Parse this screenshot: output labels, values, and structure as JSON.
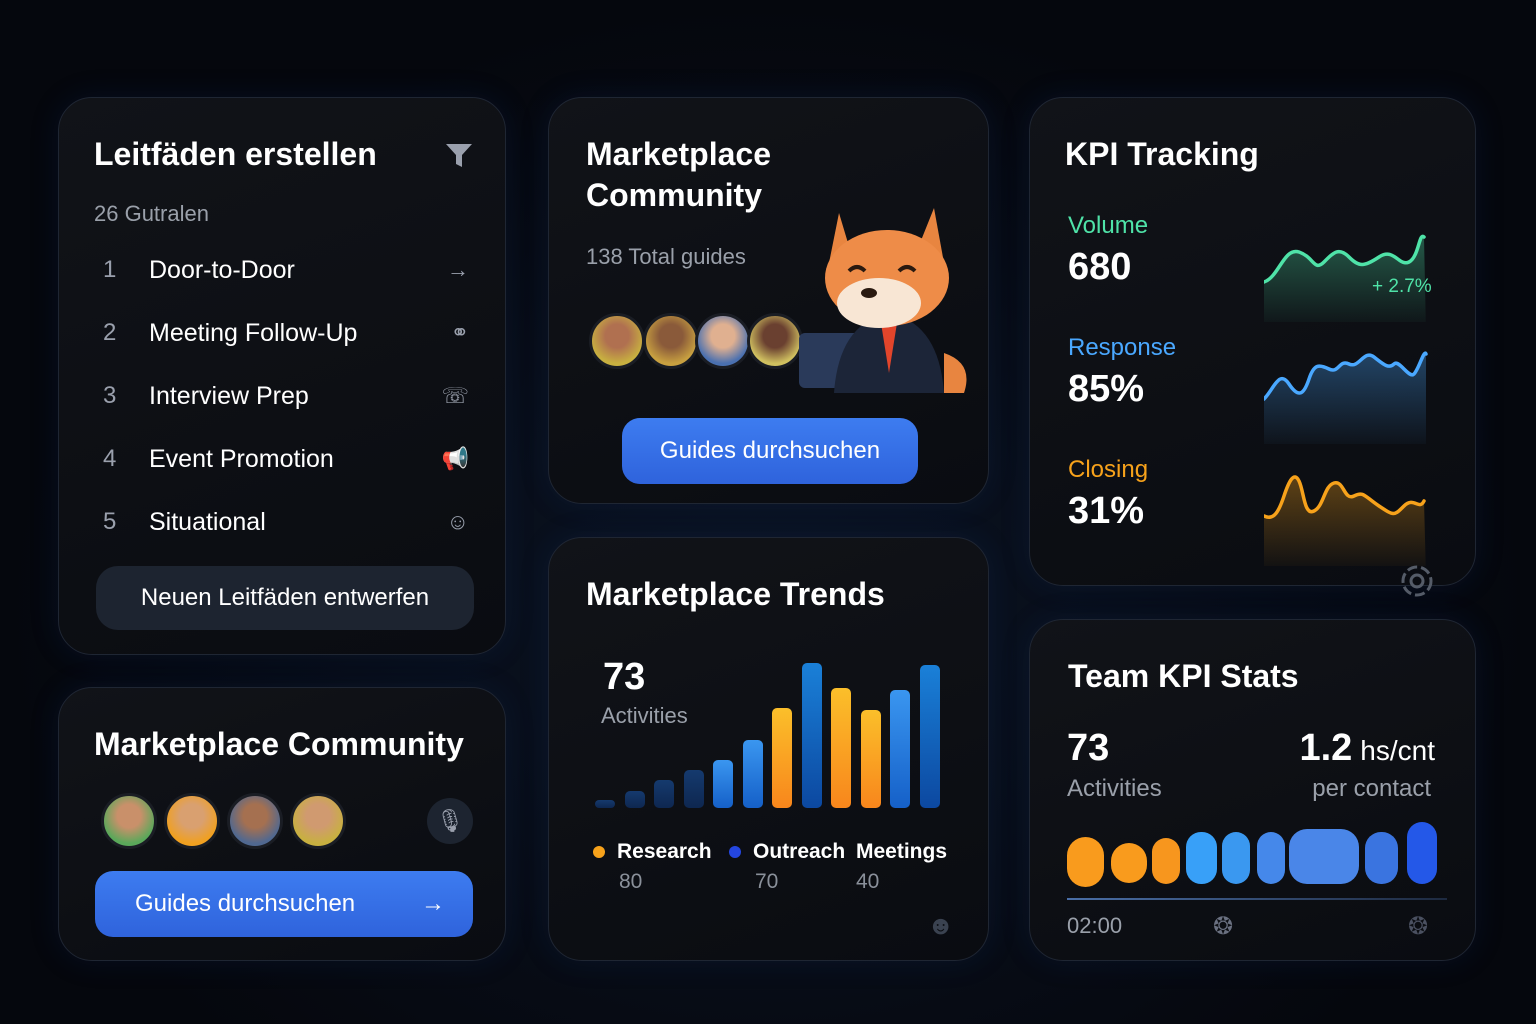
{
  "guides": {
    "title": "Leitfäden erstellen",
    "count": "26 Gutralen",
    "filter_icon": "filter-icon",
    "items": [
      {
        "n": "1",
        "label": "Door-to-Door",
        "icon": "arrow-right-icon",
        "glyph": "→"
      },
      {
        "n": "2",
        "label": "Meeting Follow-Up",
        "icon": "link-icon",
        "glyph": "⚭"
      },
      {
        "n": "3",
        "label": "Interview Prep",
        "icon": "phone-icon",
        "glyph": "☏"
      },
      {
        "n": "4",
        "label": "Event Promotion",
        "icon": "megaphone-icon",
        "glyph": "📢"
      },
      {
        "n": "5",
        "label": "Situational",
        "icon": "face-icon",
        "glyph": "☺"
      }
    ],
    "button": "Neuen Leitfäden entwerfen"
  },
  "community_top": {
    "title_line1": "Marketplace",
    "title_line2": "Community",
    "total": "138 Total guides",
    "button": "Guides durchsuchen"
  },
  "community_bottom": {
    "title": "Marketplace Community",
    "button": "Guides durchsuchen",
    "arrow": "→"
  },
  "trends": {
    "title": "Marketplace Trends",
    "value": "73",
    "value_label": "Activities",
    "bars": [
      {
        "v": 8,
        "c": "dark"
      },
      {
        "v": 17,
        "c": "dark"
      },
      {
        "v": 28,
        "c": "dark"
      },
      {
        "v": 38,
        "c": "dark"
      },
      {
        "v": 48,
        "c": "blue"
      },
      {
        "v": 68,
        "c": "blue"
      },
      {
        "v": 100,
        "c": "orange"
      },
      {
        "v": 145,
        "c": "blue"
      },
      {
        "v": 120,
        "c": "orange"
      },
      {
        "v": 98,
        "c": "orange"
      },
      {
        "v": 118,
        "c": "blue"
      },
      {
        "v": 143,
        "c": "blue"
      }
    ],
    "legend": [
      {
        "name": "Research",
        "value": "80",
        "color": "#f7a21b"
      },
      {
        "name": "Outreach",
        "value": "70",
        "color": "#2446e0"
      },
      {
        "name": "Meetings",
        "value": "40",
        "color": ""
      }
    ]
  },
  "kpi": {
    "title": "KPI Tracking",
    "metrics": [
      {
        "label": "Volume",
        "value": "680",
        "color": "#4fe3a8",
        "delta": "+ 2.7%"
      },
      {
        "label": "Response",
        "value": "85%",
        "color": "#4aa8ff"
      },
      {
        "label": "Closing",
        "value": "31%",
        "color": "#f7a21b"
      }
    ]
  },
  "team": {
    "title": "Team KPI Stats",
    "value1": "73",
    "label1": "Activities",
    "value2": "1.2",
    "unit2": "hs/cnt",
    "label2": "per contact",
    "time": "02:00"
  },
  "colors": {
    "accent": "#3d7cf0",
    "orange": "#f7a21b",
    "green": "#4fe3a8"
  }
}
